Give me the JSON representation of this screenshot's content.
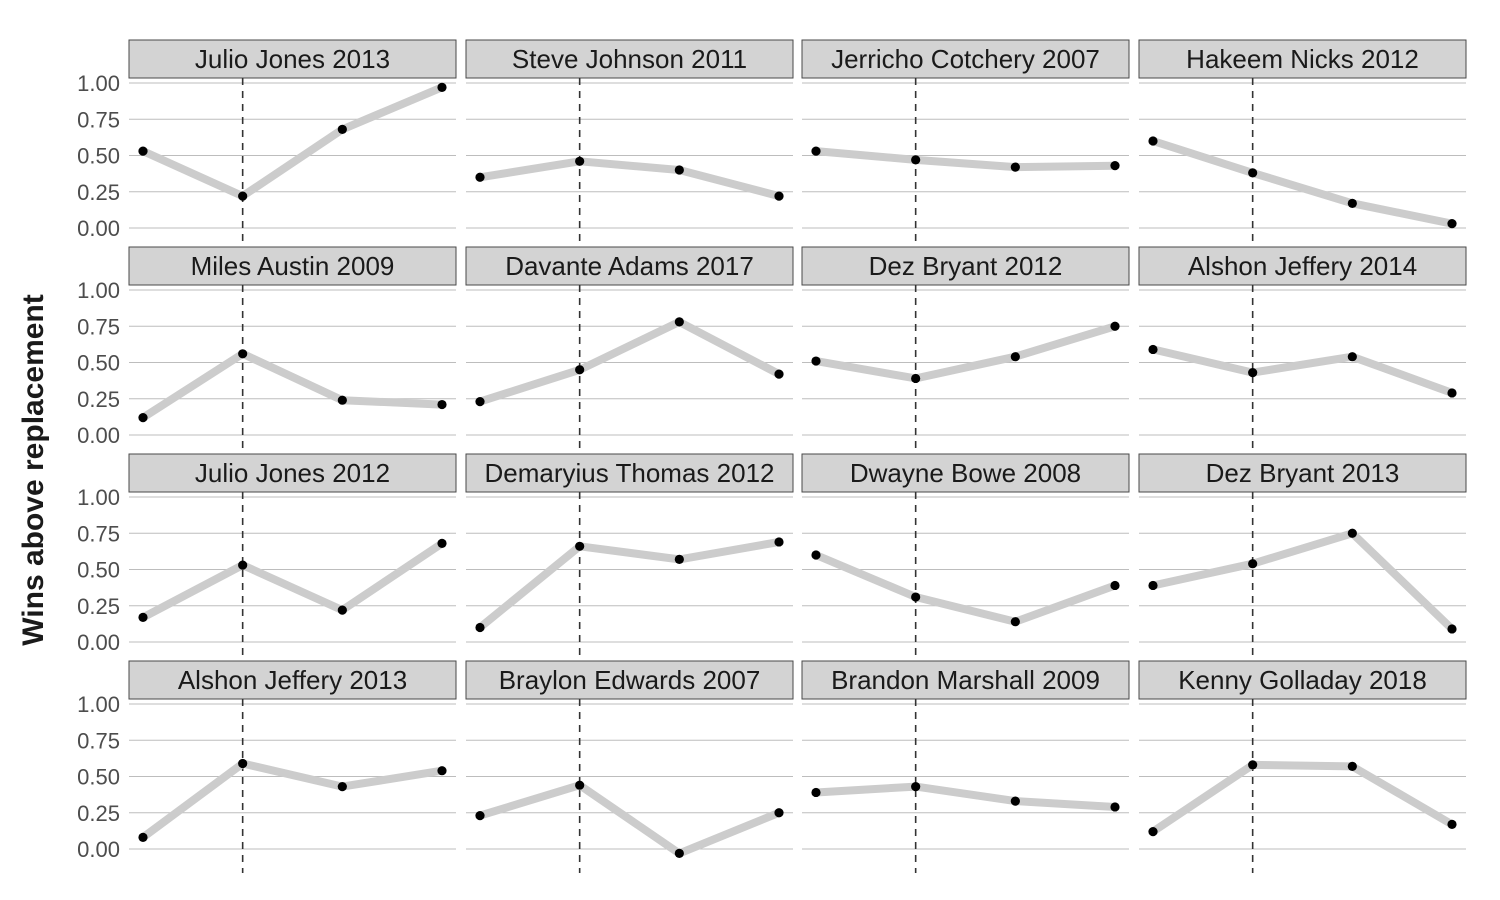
{
  "chart_data": {
    "type": "line",
    "ylabel": "Wins above replacement",
    "ylim": [
      0,
      1
    ],
    "yticks": [
      "0.00",
      "0.25",
      "0.50",
      "0.75",
      "1.00"
    ],
    "ytick_values": [
      0,
      0.25,
      0.5,
      0.75,
      1.0
    ],
    "x": [
      1,
      2,
      3,
      4
    ],
    "vline_x": 2,
    "grid": "horizontal",
    "colors": {
      "line": "#cccccc",
      "point": "#000000",
      "strip": "#d3d3d3",
      "grid": "#bdbdbd",
      "vline": "#333333"
    },
    "panels": [
      {
        "title": "Julio Jones 2013",
        "values": [
          0.53,
          0.22,
          0.68,
          0.97
        ]
      },
      {
        "title": "Steve Johnson 2011",
        "values": [
          0.35,
          0.46,
          0.4,
          0.22
        ]
      },
      {
        "title": "Jerricho Cotchery 2007",
        "values": [
          0.53,
          0.47,
          0.42,
          0.43
        ]
      },
      {
        "title": "Hakeem Nicks 2012",
        "values": [
          0.6,
          0.38,
          0.17,
          0.03
        ]
      },
      {
        "title": "Miles Austin 2009",
        "values": [
          0.12,
          0.56,
          0.24,
          0.21
        ]
      },
      {
        "title": "Davante Adams 2017",
        "values": [
          0.23,
          0.45,
          0.78,
          0.42
        ]
      },
      {
        "title": "Dez Bryant 2012",
        "values": [
          0.51,
          0.39,
          0.54,
          0.75
        ]
      },
      {
        "title": "Alshon Jeffery 2014",
        "values": [
          0.59,
          0.43,
          0.54,
          0.29
        ]
      },
      {
        "title": "Julio Jones 2012",
        "values": [
          0.17,
          0.53,
          0.22,
          0.68
        ]
      },
      {
        "title": "Demaryius Thomas 2012",
        "values": [
          0.1,
          0.66,
          0.57,
          0.69
        ]
      },
      {
        "title": "Dwayne Bowe 2008",
        "values": [
          0.6,
          0.31,
          0.14,
          0.39
        ]
      },
      {
        "title": "Dez Bryant 2013",
        "values": [
          0.39,
          0.54,
          0.75,
          0.09
        ]
      },
      {
        "title": "Alshon Jeffery 2013",
        "values": [
          0.08,
          0.59,
          0.43,
          0.54
        ]
      },
      {
        "title": "Braylon Edwards 2007",
        "values": [
          0.23,
          0.44,
          -0.03,
          0.25
        ]
      },
      {
        "title": "Brandon Marshall 2009",
        "values": [
          0.39,
          0.43,
          0.33,
          0.29
        ]
      },
      {
        "title": "Kenny Golladay 2018",
        "values": [
          0.12,
          0.58,
          0.57,
          0.17
        ]
      }
    ]
  }
}
